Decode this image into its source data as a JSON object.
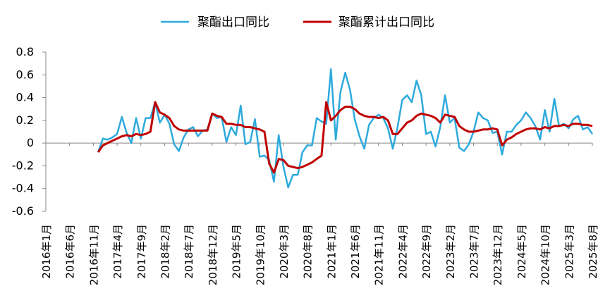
{
  "chart_data": {
    "type": "line",
    "title": "",
    "xlabel": "",
    "ylabel": "",
    "ylim": [
      -0.6,
      0.8
    ],
    "y_ticks": [
      "0.8",
      "0.6",
      "0.4",
      "0.2",
      "0",
      "-0.2",
      "-0.4",
      "-0.6"
    ],
    "y_tick_values": [
      0.8,
      0.6,
      0.4,
      0.2,
      0,
      -0.2,
      -0.4,
      -0.6
    ],
    "x_tick_labels": [
      "2016年1月",
      "2016年6月",
      "2016年11月",
      "2017年4月",
      "2017年9月",
      "2018年2月",
      "2018年7月",
      "2018年12月",
      "2019年5月",
      "2019年10月",
      "2020年3月",
      "2020年8月",
      "2021年1月",
      "2021年6月",
      "2021年11月",
      "2022年4月",
      "2022年9月",
      "2023年2月",
      "2023年7月",
      "2023年12月",
      "2024年5月",
      "2024年10月",
      "2025年3月",
      "2025年8月"
    ],
    "x_start": "2016-01",
    "x_end": "2025-08",
    "grid": false,
    "legend_position": "top",
    "series": [
      {
        "name": "聚酯出口同比",
        "color": "#2eaadc",
        "start": "2016-12",
        "values": [
          -0.08,
          0.04,
          0.03,
          0.05,
          0.08,
          0.23,
          0.09,
          0.0,
          0.22,
          0.04,
          0.22,
          0.22,
          0.36,
          0.18,
          0.25,
          0.17,
          -0.01,
          -0.07,
          0.05,
          0.12,
          0.14,
          0.06,
          0.11,
          0.12,
          0.26,
          0.22,
          0.23,
          0.01,
          0.14,
          0.07,
          0.33,
          -0.01,
          0.01,
          0.21,
          -0.12,
          -0.11,
          -0.15,
          -0.34,
          0.07,
          -0.21,
          -0.39,
          -0.28,
          -0.28,
          -0.08,
          -0.02,
          -0.02,
          0.22,
          0.19,
          0.17,
          0.65,
          0.03,
          0.45,
          0.62,
          0.47,
          0.21,
          0.06,
          -0.05,
          0.16,
          0.22,
          0.25,
          0.22,
          0.13,
          -0.05,
          0.14,
          0.38,
          0.42,
          0.36,
          0.55,
          0.42,
          0.08,
          0.1,
          -0.03,
          0.14,
          0.42,
          0.18,
          0.22,
          -0.04,
          -0.07,
          -0.01,
          0.1,
          0.27,
          0.22,
          0.2,
          0.09,
          0.1,
          -0.1,
          0.1,
          0.1,
          0.16,
          0.2,
          0.27,
          0.22,
          0.15,
          0.03,
          0.29,
          0.1,
          0.39,
          0.15,
          0.17,
          0.13,
          0.21,
          0.24,
          0.12,
          0.14,
          0.08
        ]
      },
      {
        "name": "聚酯累计出口同比",
        "color": "#c00000",
        "start": "2016-12",
        "values": [
          -0.08,
          -0.02,
          0.0,
          0.02,
          0.04,
          0.06,
          0.07,
          0.06,
          0.08,
          0.07,
          0.08,
          0.1,
          0.36,
          0.27,
          0.25,
          0.22,
          0.15,
          0.12,
          0.11,
          0.11,
          0.11,
          0.11,
          0.11,
          0.11,
          0.26,
          0.24,
          0.23,
          0.17,
          0.17,
          0.16,
          0.16,
          0.14,
          0.14,
          0.13,
          0.12,
          0.1,
          -0.18,
          -0.26,
          -0.14,
          -0.15,
          -0.2,
          -0.21,
          -0.22,
          -0.21,
          -0.19,
          -0.17,
          -0.14,
          -0.11,
          0.36,
          0.2,
          0.24,
          0.29,
          0.32,
          0.32,
          0.3,
          0.26,
          0.24,
          0.23,
          0.23,
          0.22,
          0.23,
          0.2,
          0.08,
          0.08,
          0.13,
          0.18,
          0.2,
          0.24,
          0.26,
          0.25,
          0.24,
          0.22,
          0.18,
          0.25,
          0.24,
          0.23,
          0.15,
          0.12,
          0.1,
          0.1,
          0.11,
          0.12,
          0.12,
          0.13,
          0.12,
          -0.02,
          0.03,
          0.05,
          0.08,
          0.1,
          0.12,
          0.13,
          0.13,
          0.12,
          0.14,
          0.13,
          0.15,
          0.15,
          0.16,
          0.15,
          0.17,
          0.17,
          0.16,
          0.16,
          0.15
        ]
      }
    ]
  }
}
